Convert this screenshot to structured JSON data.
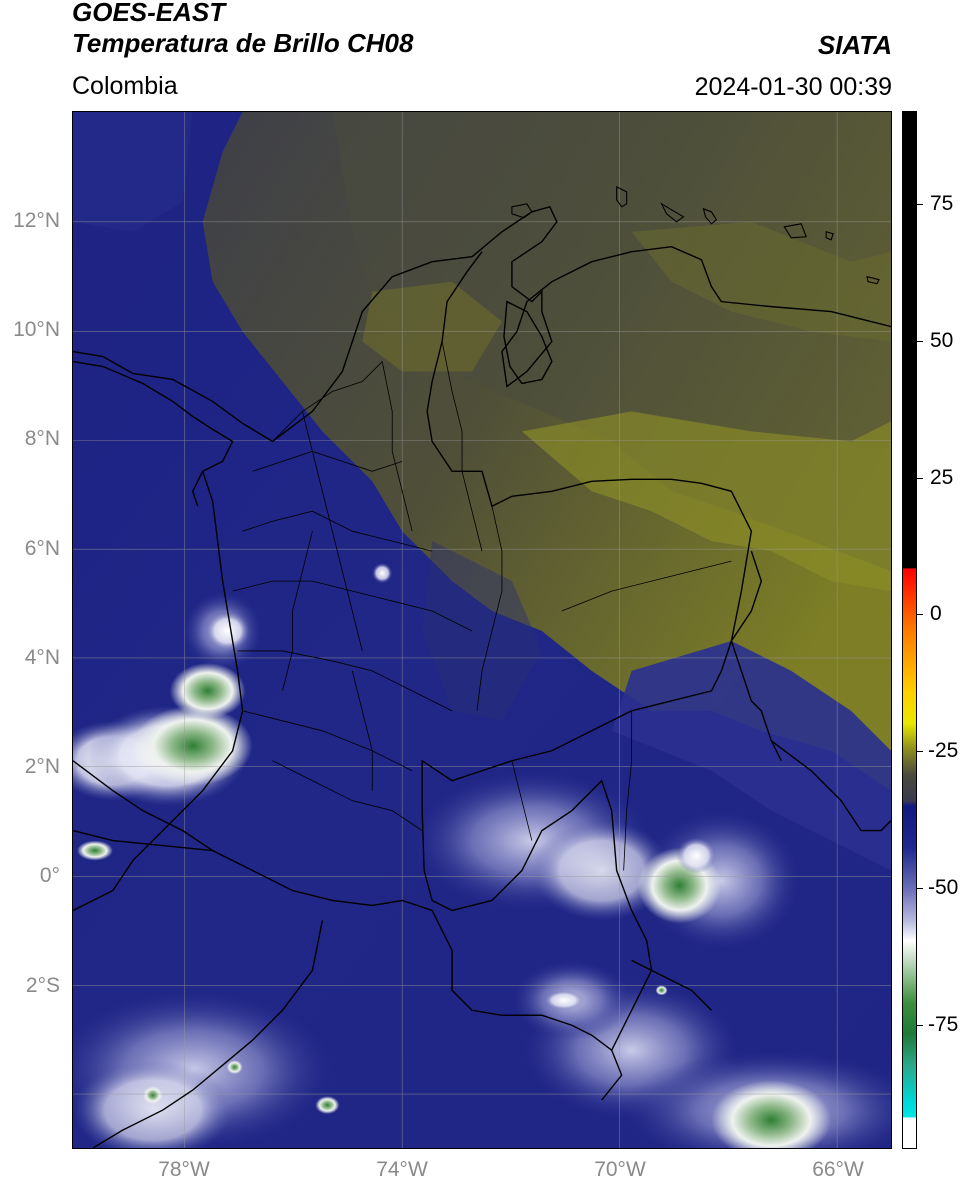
{
  "header": {
    "title_line1": "GOES-EAST",
    "title_line2": "Temperatura de Brillo CH08",
    "subtitle": "Colombia",
    "source": "SIATA",
    "datetime": "2024-01-30 00:39"
  },
  "map": {
    "lat_labels": [
      "12°N",
      "10°N",
      "8°N",
      "6°N",
      "4°N",
      "2°N",
      "0°",
      "2°S"
    ],
    "lon_labels": [
      "78°W",
      "74°W",
      "70°W",
      "66°W"
    ],
    "colors": {
      "deep_blue": "#1b1f7a",
      "navy": "#222a88",
      "gray_dark": "#3f4046",
      "gray_olive": "#4f5038",
      "olive": "#6a6a2a",
      "yellow_olive": "#8e8f25",
      "cloud_white": "#f4f6f4",
      "cloud_green": "#3f8f3f",
      "lavender": "#8c8fc8",
      "border": "#000000"
    }
  },
  "colorbar": {
    "labels": [
      "75",
      "50",
      "25",
      "0",
      "-25",
      "-50",
      "-75"
    ]
  }
}
